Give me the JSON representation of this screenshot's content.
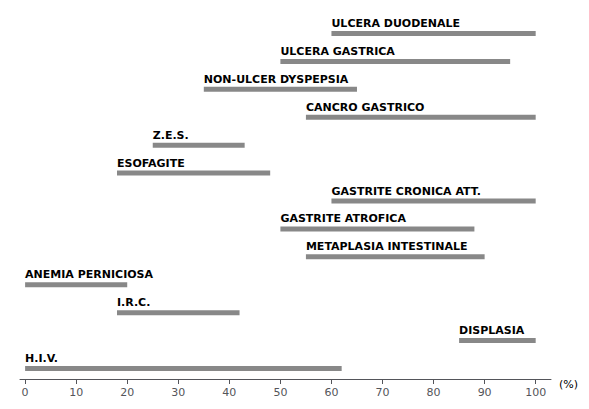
{
  "chart_data": {
    "type": "range_bar",
    "orientation": "horizontal",
    "categories": [
      "ULCERA DUODENALE",
      "ULCERA GASTRICA",
      "NON-ULCER DYSPEPSIA",
      "CANCRO GASTRICO",
      "Z.E.S.",
      "ESOFAGITE",
      "GASTRITE CRONICA ATT.",
      "GASTRITE ATROFICA",
      "METAPLASIA INTESTINALE",
      "ANEMIA PERNICIOSA",
      "I.R.C.",
      "DISPLASIA",
      "H.I.V."
    ],
    "values": [
      [
        60,
        100
      ],
      [
        50,
        95
      ],
      [
        35,
        65
      ],
      [
        55,
        100
      ],
      [
        25,
        43
      ],
      [
        18,
        48
      ],
      [
        60,
        100
      ],
      [
        50,
        88
      ],
      [
        55,
        90
      ],
      [
        0,
        20
      ],
      [
        18,
        42
      ],
      [
        85,
        100
      ],
      [
        0,
        62
      ]
    ],
    "color": "#888888",
    "x_label": "(%)",
    "xlim": [
      -1,
      103
    ],
    "xticks": [
      0,
      10,
      20,
      30,
      40,
      50,
      60,
      70,
      80,
      90,
      100
    ],
    "grid": false,
    "tick_labels": "x"
  }
}
